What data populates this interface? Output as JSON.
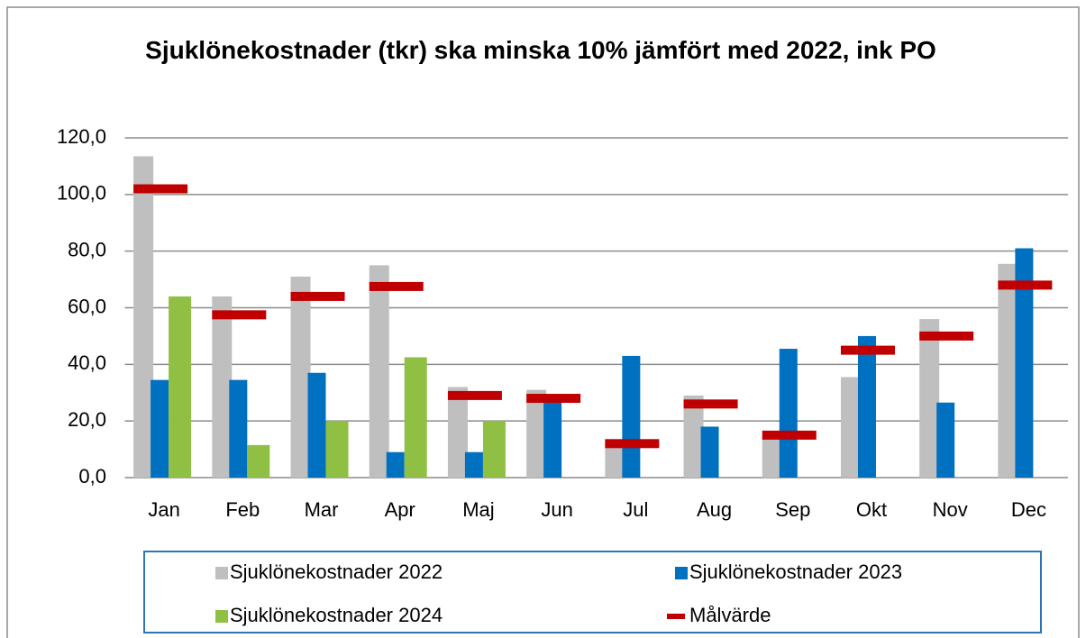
{
  "chart_data": {
    "type": "bar",
    "title": "Sjuklönekostnader (tkr) ska minska 10% jämfört med 2022, ink PO",
    "categories": [
      "Jan",
      "Feb",
      "Mar",
      "Apr",
      "Maj",
      "Jun",
      "Jul",
      "Aug",
      "Sep",
      "Okt",
      "Nov",
      "Dec"
    ],
    "series": [
      {
        "name": "Sjuklönekostnader 2022",
        "color": "#bfbfbf",
        "values": [
          113.5,
          64,
          71,
          75,
          32,
          31,
          12,
          29,
          15,
          35.5,
          56,
          75.5
        ]
      },
      {
        "name": "Sjuklönekostnader 2023",
        "color": "#0070c0",
        "values": [
          34.5,
          34.5,
          37,
          9,
          9,
          27,
          43,
          18,
          45.5,
          50,
          26.5,
          81
        ]
      },
      {
        "name": "Sjuklönekostnader 2024",
        "color": "#8fc043",
        "values": [
          64,
          11.5,
          20,
          42.5,
          20,
          null,
          null,
          null,
          null,
          null,
          null,
          null
        ]
      },
      {
        "name": "Målvärde",
        "color": "#c00000",
        "type": "marker",
        "values": [
          102,
          57.5,
          64,
          67.5,
          29,
          28,
          12,
          26,
          15,
          45,
          50,
          68
        ]
      }
    ],
    "ylim": [
      0,
      120
    ],
    "yticks": [
      {
        "value": 0,
        "label": "0,0"
      },
      {
        "value": 20,
        "label": "20,0"
      },
      {
        "value": 40,
        "label": "40,0"
      },
      {
        "value": 60,
        "label": "60,0"
      },
      {
        "value": 80,
        "label": "80,0"
      },
      {
        "value": 100,
        "label": "100,0"
      },
      {
        "value": 120,
        "label": "120,0"
      }
    ],
    "grid": true,
    "legend": "bottom"
  }
}
